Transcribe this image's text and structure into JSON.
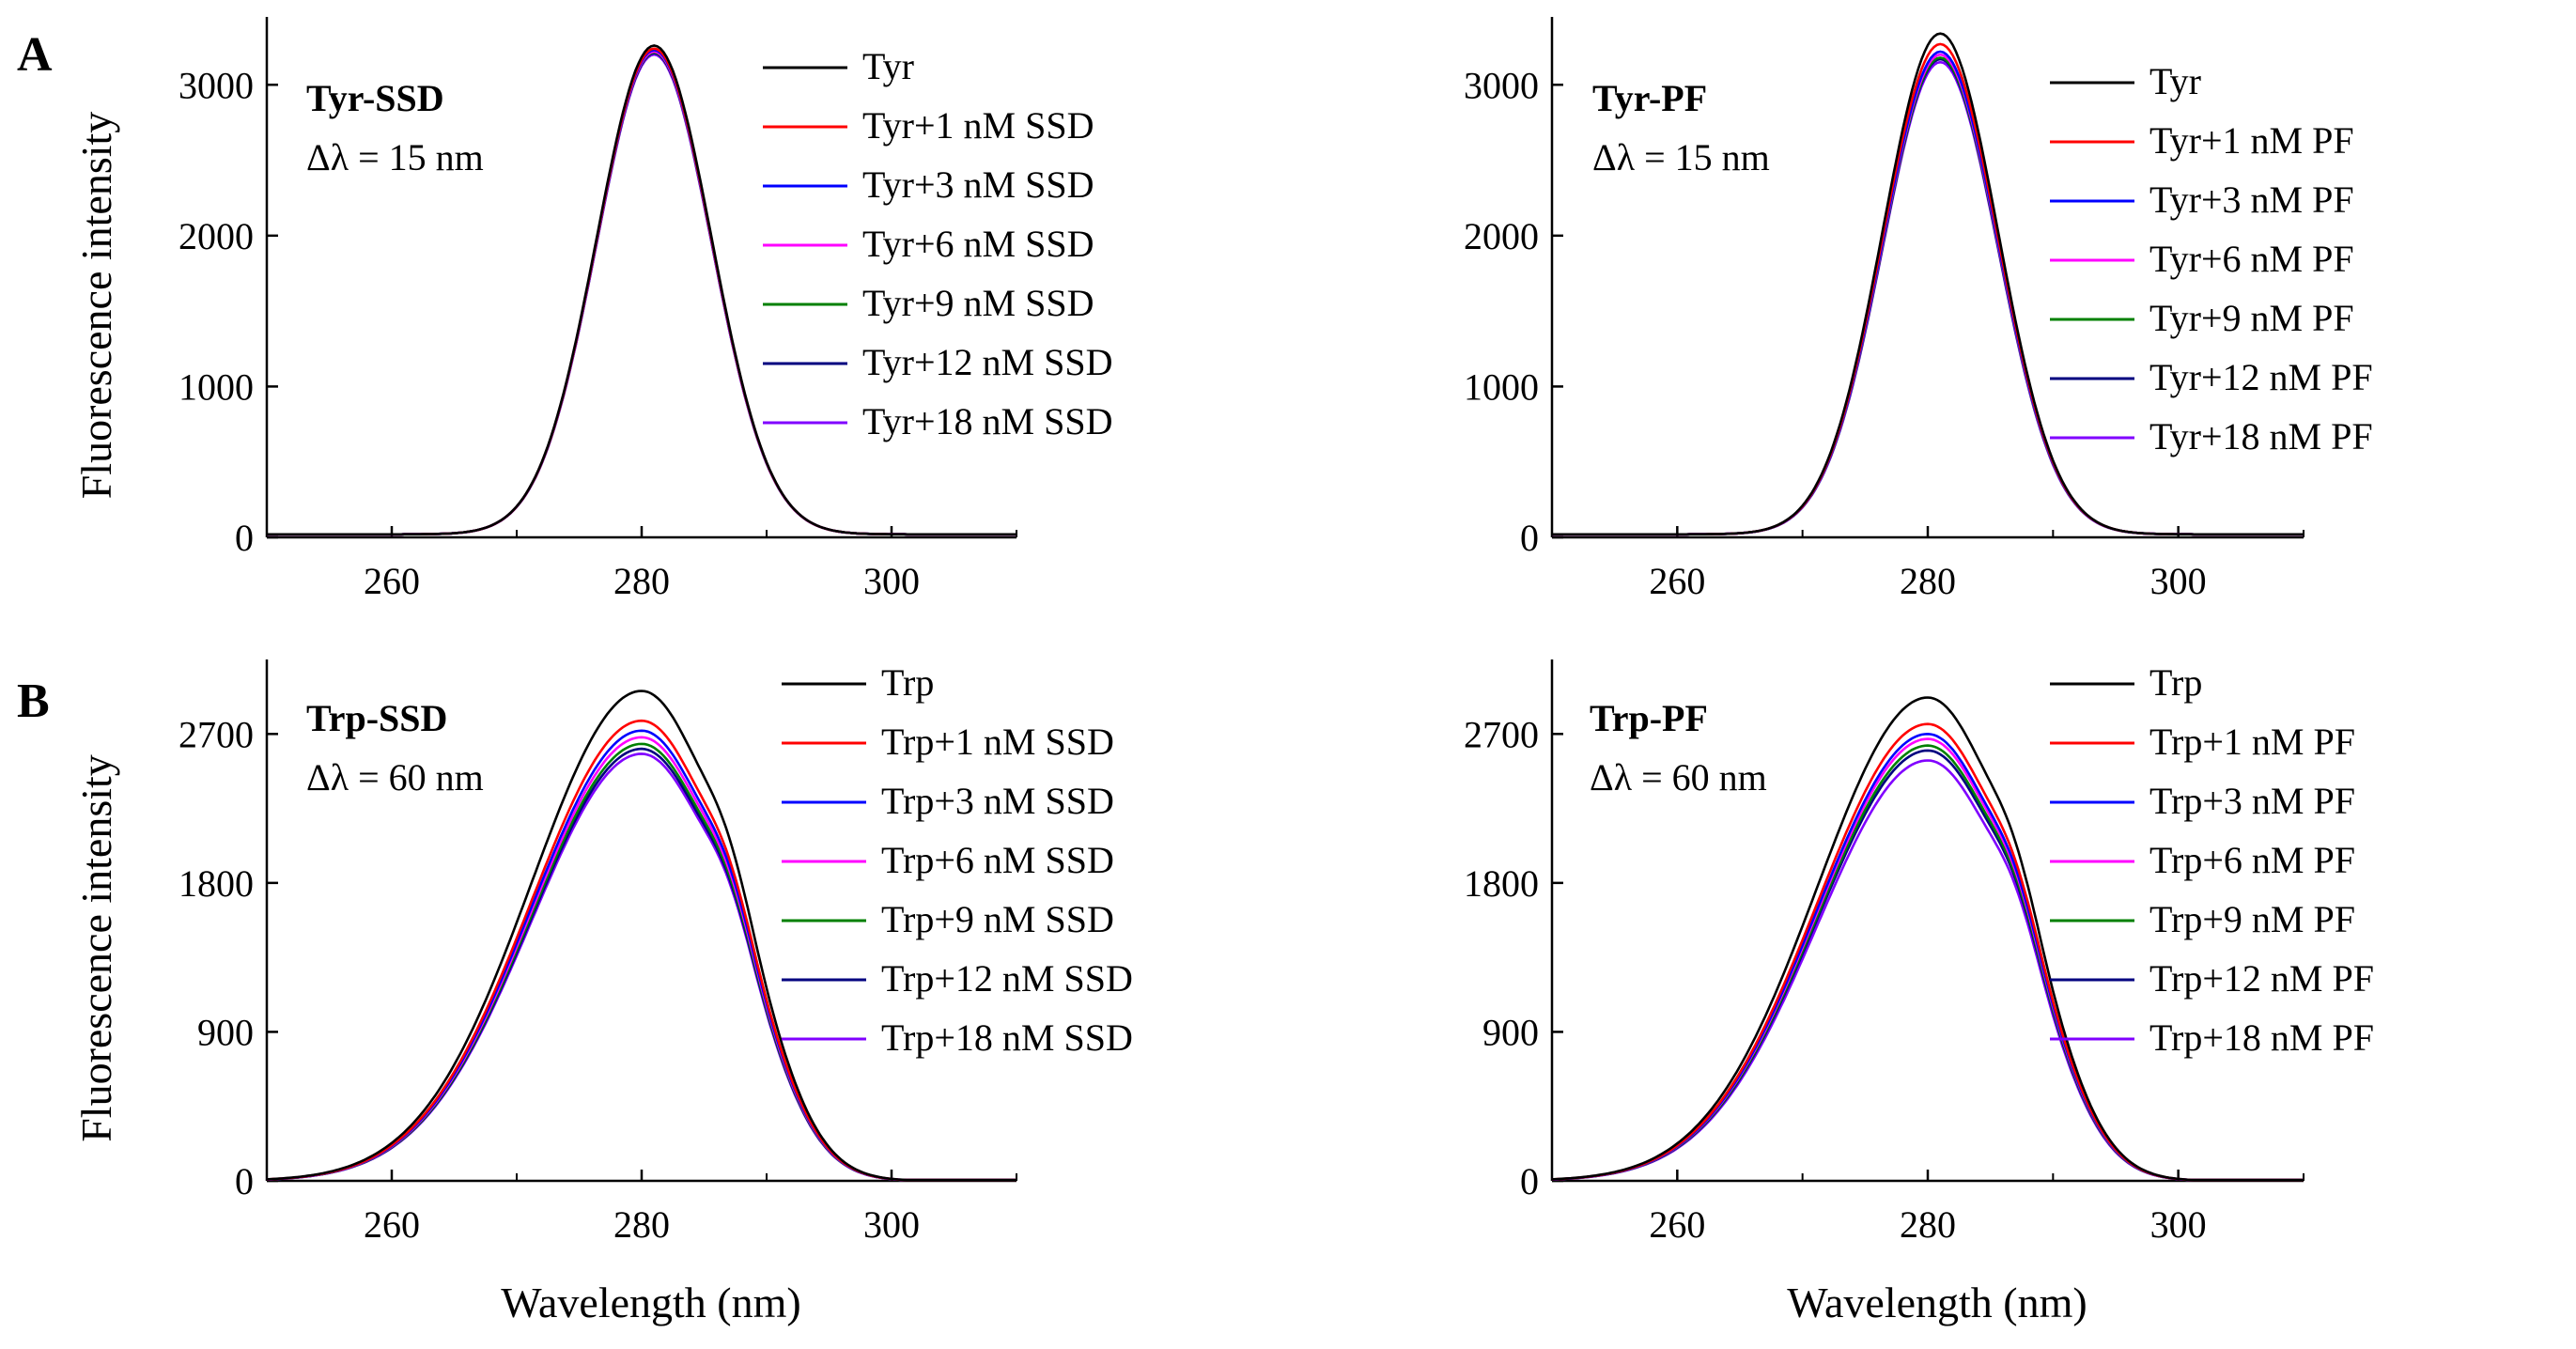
{
  "chart_data": [
    {
      "type": "line",
      "panel_letter": "A",
      "title": "Tyr-SSD",
      "subtitle": "Δλ = 15 nm",
      "xlabel": "",
      "ylabel": "Fluorescence intensity",
      "xlim": [
        250,
        310
      ],
      "ylim": [
        0,
        3450
      ],
      "xticks": [
        260,
        280,
        300
      ],
      "yticks": [
        0,
        1000,
        2000,
        3000
      ],
      "curve": {
        "shape": "gauss",
        "center": 281,
        "sigma": 4.6,
        "baseline": 20
      },
      "series": [
        {
          "name": "Tyr",
          "color": "#000000",
          "peak": 3260
        },
        {
          "name": "Tyr+1 nM SSD",
          "color": "#ff0000",
          "peak": 3240
        },
        {
          "name": "Tyr+3 nM SSD",
          "color": "#0000ff",
          "peak": 3230
        },
        {
          "name": "Tyr+6 nM SSD",
          "color": "#ff00ff",
          "peak": 3220
        },
        {
          "name": "Tyr+9 nM SSD",
          "color": "#008000",
          "peak": 3215
        },
        {
          "name": "Tyr+12 nM SSD",
          "color": "#00007f",
          "peak": 3210
        },
        {
          "name": "Tyr+18 nM SSD",
          "color": "#8000ff",
          "peak": 3200
        }
      ]
    },
    {
      "type": "line",
      "panel_letter": "",
      "title": "Tyr-PF",
      "subtitle": "Δλ = 15 nm",
      "xlabel": "",
      "ylabel": "",
      "xlim": [
        250,
        310
      ],
      "ylim": [
        0,
        3450
      ],
      "xticks": [
        260,
        280,
        300
      ],
      "yticks": [
        0,
        1000,
        2000,
        3000
      ],
      "curve": {
        "shape": "gauss",
        "center": 281,
        "sigma": 4.6,
        "baseline": 20
      },
      "series": [
        {
          "name": "Tyr",
          "color": "#000000",
          "peak": 3340
        },
        {
          "name": "Tyr+1 nM PF",
          "color": "#ff0000",
          "peak": 3270
        },
        {
          "name": "Tyr+3 nM PF",
          "color": "#0000ff",
          "peak": 3220
        },
        {
          "name": "Tyr+6 nM PF",
          "color": "#ff00ff",
          "peak": 3200
        },
        {
          "name": "Tyr+9 nM PF",
          "color": "#008000",
          "peak": 3180
        },
        {
          "name": "Tyr+12 nM PF",
          "color": "#00007f",
          "peak": 3170
        },
        {
          "name": "Tyr+18 nM PF",
          "color": "#8000ff",
          "peak": 3150
        }
      ]
    },
    {
      "type": "line",
      "panel_letter": "B",
      "title": "Trp-SSD",
      "subtitle": "Δλ = 60 nm",
      "xlabel": "Wavelength (nm)",
      "ylabel": "Fluorescence intensity",
      "xlim": [
        250,
        310
      ],
      "ylim": [
        0,
        3150
      ],
      "xticks": [
        260,
        280,
        300
      ],
      "yticks": [
        0,
        900,
        1800,
        2700
      ],
      "curve": {
        "shape": "trp",
        "center": 280
      },
      "series": [
        {
          "name": "Trp",
          "color": "#000000",
          "peak": 2960
        },
        {
          "name": "Trp+1 nM SSD",
          "color": "#ff0000",
          "peak": 2780
        },
        {
          "name": "Trp+3 nM SSD",
          "color": "#0000ff",
          "peak": 2720
        },
        {
          "name": "Trp+6 nM SSD",
          "color": "#ff00ff",
          "peak": 2680
        },
        {
          "name": "Trp+9 nM SSD",
          "color": "#008000",
          "peak": 2640
        },
        {
          "name": "Trp+12 nM SSD",
          "color": "#00007f",
          "peak": 2610
        },
        {
          "name": "Trp+18 nM SSD",
          "color": "#8000ff",
          "peak": 2580
        }
      ]
    },
    {
      "type": "line",
      "panel_letter": "",
      "title": "Trp-PF",
      "subtitle": "Δλ = 60 nm",
      "xlabel": "Wavelength (nm)",
      "ylabel": "",
      "xlim": [
        250,
        310
      ],
      "ylim": [
        0,
        3150
      ],
      "xticks": [
        260,
        280,
        300
      ],
      "yticks": [
        0,
        900,
        1800,
        2700
      ],
      "curve": {
        "shape": "trp",
        "center": 280
      },
      "series": [
        {
          "name": "Trp",
          "color": "#000000",
          "peak": 2920
        },
        {
          "name": "Trp+1 nM PF",
          "color": "#ff0000",
          "peak": 2760
        },
        {
          "name": "Trp+3 nM PF",
          "color": "#0000ff",
          "peak": 2700
        },
        {
          "name": "Trp+6 nM PF",
          "color": "#ff00ff",
          "peak": 2670
        },
        {
          "name": "Trp+9 nM PF",
          "color": "#008000",
          "peak": 2630
        },
        {
          "name": "Trp+12 nM PF",
          "color": "#00007f",
          "peak": 2600
        },
        {
          "name": "Trp+18 nM PF",
          "color": "#8000ff",
          "peak": 2540
        }
      ]
    }
  ]
}
